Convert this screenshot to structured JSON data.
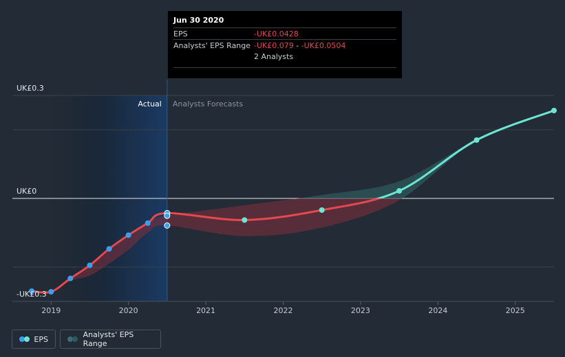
{
  "chart_data": {
    "type": "line",
    "y_tick_labels": [
      "UK£0.3",
      "UK£0",
      "-UK£0.3"
    ],
    "y_ticks": [
      0.3,
      0,
      -0.3
    ],
    "ylim": [
      -0.3,
      0.3
    ],
    "x_tick_labels": [
      "2019",
      "2020",
      "2021",
      "2022",
      "2023",
      "2024",
      "2025"
    ],
    "x_ticks": [
      2019,
      2020,
      2021,
      2022,
      2023,
      2024,
      2025
    ],
    "xlim": [
      2018.5,
      2025.5
    ],
    "regions": {
      "actual_label": "Actual",
      "forecast_label": "Analysts Forecasts",
      "boundary": 2020.5
    },
    "grid": true,
    "series": [
      {
        "name": "EPS",
        "points": [
          [
            2018.75,
            -0.27
          ],
          [
            2019.0,
            -0.272
          ],
          [
            2019.25,
            -0.233
          ],
          [
            2019.5,
            -0.195
          ],
          [
            2019.75,
            -0.147
          ],
          [
            2020.0,
            -0.107
          ],
          [
            2020.25,
            -0.072
          ],
          [
            2020.5,
            -0.0428
          ],
          [
            2021.5,
            -0.063
          ],
          [
            2022.5,
            -0.034
          ],
          [
            2023.5,
            0.022
          ],
          [
            2024.5,
            0.17
          ],
          [
            2025.5,
            0.256
          ]
        ],
        "marked_x": [
          2018.75,
          2019.0,
          2019.25,
          2019.5,
          2019.75,
          2020.0,
          2020.25,
          2020.5,
          2021.5,
          2022.5,
          2023.5,
          2024.5,
          2025.5
        ]
      }
    ],
    "range_band": {
      "name": "Analysts' EPS Range",
      "x": [
        2018.75,
        2019.0,
        2019.25,
        2019.5,
        2019.75,
        2020.0,
        2020.25,
        2020.5,
        2021.5,
        2022.5,
        2023.5,
        2024.5,
        2025.5
      ],
      "low": [
        -0.27,
        -0.272,
        -0.24,
        -0.225,
        -0.19,
        -0.15,
        -0.1,
        -0.079,
        -0.11,
        -0.085,
        -0.005,
        0.17,
        0.256
      ],
      "high": [
        -0.27,
        -0.272,
        -0.23,
        -0.195,
        -0.147,
        -0.107,
        -0.068,
        -0.0504,
        -0.02,
        0.01,
        0.05,
        0.17,
        0.256
      ]
    },
    "colors": {
      "eps_line": "#e5484d",
      "eps_forecast_positive": "#6ce6d4",
      "eps_dot": "#3aa0ea",
      "band_negative": "#7a2f3e",
      "band_positive": "#2f5a5c",
      "actual_shade": "#1d3a5c"
    },
    "tooltip": {
      "date": "Jun 30 2020",
      "eps_label": "EPS",
      "eps_value": "-UK£0.0428",
      "range_label": "Analysts' EPS Range",
      "range_low": "-UK£0.079",
      "range_sep": " - ",
      "range_high": "-UK£0.0504",
      "analysts": "2 Analysts"
    }
  },
  "legend": {
    "eps_label": "EPS",
    "range_label": "Analysts' EPS Range"
  }
}
